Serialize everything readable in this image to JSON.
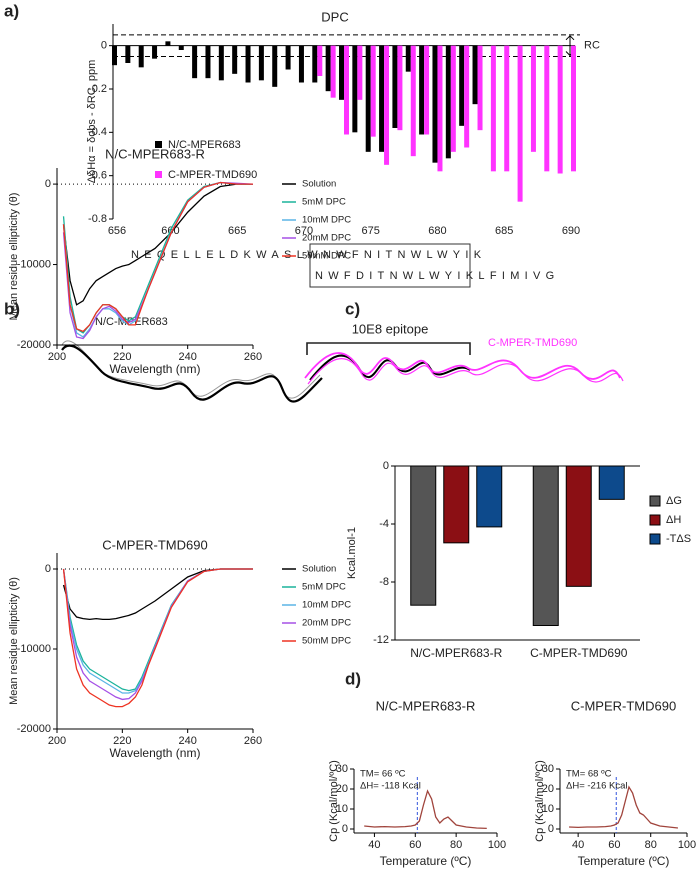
{
  "panel_labels": [
    "a)",
    "b)",
    "c)",
    "d)"
  ],
  "chart_data": [
    {
      "type": "bar",
      "title": "DPC",
      "y_label": "ΔδHα = δobs - δRC, ppm",
      "x": [
        656,
        657,
        658,
        659,
        660,
        661,
        662,
        663,
        664,
        665,
        666,
        667,
        668,
        669,
        670,
        671,
        672,
        673,
        674,
        675,
        676,
        677,
        678,
        679,
        680,
        681,
        682,
        683,
        684,
        685,
        686,
        687,
        688,
        689,
        690
      ],
      "series": [
        {
          "name": "N/C-MPER683",
          "color": "#000000",
          "values": [
            -0.09,
            -0.08,
            -0.1,
            -0.06,
            0.02,
            -0.02,
            -0.15,
            -0.15,
            -0.16,
            -0.13,
            -0.17,
            -0.16,
            -0.19,
            -0.11,
            -0.17,
            -0.17,
            -0.21,
            -0.25,
            -0.4,
            -0.49,
            -0.49,
            -0.38,
            -0.12,
            -0.41,
            -0.54,
            -0.52,
            -0.37,
            -0.27,
            null,
            null,
            null,
            null,
            null,
            null,
            null
          ]
        },
        {
          "name": "C-MPER-TMD690",
          "color": "#ff33ff",
          "values": [
            null,
            null,
            null,
            null,
            null,
            null,
            null,
            null,
            null,
            null,
            null,
            null,
            null,
            null,
            null,
            -0.14,
            -0.24,
            -0.41,
            -0.25,
            -0.42,
            -0.55,
            -0.39,
            -0.51,
            -0.41,
            -0.58,
            -0.49,
            -0.47,
            -0.39,
            -0.58,
            -0.58,
            -0.72,
            -0.49,
            -0.58,
            -0.59,
            -0.58
          ]
        }
      ],
      "xlim": [
        656,
        690
      ],
      "xticks": [
        656,
        660,
        665,
        670,
        675,
        680,
        685,
        690
      ],
      "ylim": [
        -0.8,
        0.1
      ],
      "yticks": [
        0,
        -0.2,
        -0.4,
        -0.6,
        -0.8
      ],
      "reference_lines": [
        0.05,
        -0.05
      ],
      "reference_label": "RC",
      "sequences": [
        "NEQELLELDKWASLWNWFNITNWLWYIK",
        "NWFDITNWLWYIKLFIMIVG"
      ],
      "epitope_label": "10E8 epitope",
      "structure_labels": [
        "N/C-MPER683",
        "C-MPER-TMD690"
      ]
    },
    {
      "type": "line",
      "title": "N/C-MPER683-R",
      "x_label": "Wavelength (nm)",
      "y_label": "Mean residue ellipticity (θ)",
      "x": [
        202,
        204,
        206,
        208,
        210,
        212,
        214,
        216,
        218,
        220,
        222,
        224,
        226,
        228,
        230,
        235,
        240,
        245,
        250,
        255,
        260
      ],
      "series": [
        {
          "name": "Solution",
          "color": "#000000",
          "values": [
            -5000,
            -12000,
            -15000,
            -14500,
            -13000,
            -12000,
            -11500,
            -11000,
            -10500,
            -10200,
            -10000,
            -9500,
            -9000,
            -8500,
            -8000,
            -6000,
            -3500,
            -1500,
            -300,
            0,
            0
          ]
        },
        {
          "name": "5mM DPC",
          "color": "#1bb39b",
          "values": [
            -4000,
            -14000,
            -18000,
            -18500,
            -17500,
            -16000,
            -15000,
            -15000,
            -15500,
            -16500,
            -17000,
            -16500,
            -14500,
            -12500,
            -10500,
            -5500,
            -2000,
            -300,
            200,
            0,
            0
          ]
        },
        {
          "name": "10mM DPC",
          "color": "#5ab4e5",
          "values": [
            -5000,
            -15000,
            -18500,
            -19000,
            -18000,
            -16500,
            -15500,
            -15500,
            -16000,
            -17000,
            -17500,
            -17000,
            -15000,
            -13000,
            -11000,
            -6000,
            -2200,
            -400,
            200,
            0,
            0
          ]
        },
        {
          "name": "20mM DPC",
          "color": "#a550e6",
          "values": [
            -6000,
            -16000,
            -19000,
            -19200,
            -18200,
            -16500,
            -15500,
            -15200,
            -15800,
            -16800,
            -17200,
            -16800,
            -15000,
            -13000,
            -11000,
            -6000,
            -2200,
            -400,
            200,
            100,
            0
          ]
        },
        {
          "name": "50mM DPC",
          "color": "#ee3322",
          "values": [
            -5000,
            -15000,
            -18000,
            -18300,
            -17500,
            -16000,
            -15000,
            -15000,
            -15500,
            -16500,
            -17500,
            -17500,
            -15200,
            -13000,
            -11000,
            -6000,
            -2200,
            -400,
            200,
            0,
            0
          ]
        }
      ],
      "xlim": [
        200,
        260
      ],
      "xticks": [
        200,
        220,
        240,
        260
      ],
      "ylim": [
        -20000,
        2000
      ],
      "yticks": [
        0,
        -10000,
        -20000
      ]
    },
    {
      "type": "line",
      "title": "C-MPER-TMD690",
      "x_label": "Wavelength (nm)",
      "y_label": "Mean residue ellipticity (θ)",
      "x": [
        202,
        204,
        206,
        208,
        210,
        212,
        214,
        216,
        218,
        220,
        222,
        224,
        226,
        228,
        230,
        235,
        240,
        245,
        250,
        255,
        260
      ],
      "series": [
        {
          "name": "Solution",
          "color": "#000000",
          "values": [
            -2000,
            -5000,
            -6000,
            -6200,
            -6300,
            -6200,
            -6300,
            -6300,
            -6200,
            -6000,
            -5800,
            -5500,
            -5000,
            -4500,
            -4000,
            -2500,
            -1000,
            -200,
            0,
            0,
            0
          ]
        },
        {
          "name": "5mM DPC",
          "color": "#1bb39b",
          "values": [
            0,
            -6000,
            -9500,
            -11500,
            -12500,
            -13000,
            -13500,
            -14000,
            -14500,
            -15000,
            -15200,
            -15000,
            -13500,
            -11500,
            -9500,
            -4500,
            -1500,
            -300,
            0,
            0,
            0
          ]
        },
        {
          "name": "10mM DPC",
          "color": "#5ab4e5",
          "values": [
            0,
            -6500,
            -10000,
            -12000,
            -13000,
            -13500,
            -14000,
            -14500,
            -15000,
            -15500,
            -15500,
            -15200,
            -13800,
            -11800,
            -9700,
            -4600,
            -1500,
            -300,
            0,
            0,
            0
          ]
        },
        {
          "name": "20mM DPC",
          "color": "#a550e6",
          "values": [
            0,
            -7000,
            -11000,
            -13000,
            -14000,
            -14500,
            -15000,
            -15500,
            -16000,
            -16300,
            -16200,
            -15500,
            -14000,
            -12000,
            -9800,
            -4700,
            -1500,
            -300,
            0,
            0,
            0
          ]
        },
        {
          "name": "50mM DPC",
          "color": "#ee3322",
          "values": [
            0,
            -8000,
            -12500,
            -14500,
            -15500,
            -16000,
            -16500,
            -17000,
            -17200,
            -17200,
            -16800,
            -16000,
            -14500,
            -12000,
            -10000,
            -4800,
            -1600,
            -300,
            0,
            0,
            0
          ]
        }
      ],
      "xlim": [
        200,
        260
      ],
      "xticks": [
        200,
        220,
        240,
        260
      ],
      "ylim": [
        -20000,
        2000
      ],
      "yticks": [
        0,
        -10000,
        -20000
      ]
    },
    {
      "type": "groupedbar",
      "y_label": "Kcal.mol-1",
      "categories": [
        "N/C-MPER683-R",
        "C-MPER-TMD690"
      ],
      "series": [
        {
          "name": "ΔG",
          "color": "#555555",
          "values": [
            -9.6,
            -11
          ]
        },
        {
          "name": "ΔH",
          "color": "#8b0f14",
          "values": [
            -5.3,
            -8.3
          ]
        },
        {
          "name": "-TΔS",
          "color": "#0d4a8c",
          "values": [
            -4.2,
            -2.3
          ]
        }
      ],
      "ylim": [
        -12,
        0
      ],
      "yticks": [
        0,
        -4,
        -8,
        -12
      ]
    },
    {
      "type": "line",
      "title": "N/C-MPER683-R",
      "x_label": "Temperature (ºC)",
      "y_label": "Cp (Kcal/mol/ºC)",
      "annotations": [
        "TM= 66 ºC",
        "ΔH=  -118 Kcal"
      ],
      "vline": 61,
      "x": [
        35,
        40,
        45,
        50,
        55,
        58,
        60,
        62,
        64,
        66,
        68,
        70,
        72,
        74,
        76,
        78,
        80,
        85,
        90,
        95
      ],
      "series": [
        {
          "color": "#a0443c",
          "values": [
            1.5,
            1,
            1.2,
            1,
            1.2,
            1.5,
            2,
            4,
            12,
            19,
            15,
            6,
            3,
            5,
            6,
            4,
            2,
            1,
            0.5,
            0.3
          ]
        }
      ],
      "xlim": [
        30,
        100
      ],
      "xticks": [
        40,
        60,
        80,
        100
      ],
      "ylim": [
        -2,
        30
      ],
      "yticks": [
        0,
        10,
        20,
        30
      ]
    },
    {
      "type": "line",
      "title": "C-MPER-TMD690",
      "x_label": "Temperature (ºC)",
      "y_label": "Cp (Kcal/mol/ºC)",
      "annotations": [
        "TM= 68 ºC",
        "ΔH=  -216 Kcal"
      ],
      "vline": 61,
      "x": [
        35,
        40,
        45,
        50,
        55,
        58,
        60,
        62,
        64,
        66,
        68,
        70,
        72,
        74,
        76,
        78,
        80,
        85,
        90,
        95
      ],
      "series": [
        {
          "color": "#a0443c",
          "values": [
            1,
            0.8,
            1,
            1,
            1.2,
            1.5,
            2,
            3,
            7,
            14,
            21,
            18,
            12,
            8,
            7,
            5,
            3,
            1.5,
            1,
            0.5
          ]
        }
      ],
      "xlim": [
        30,
        100
      ],
      "xticks": [
        40,
        60,
        80,
        100
      ],
      "ylim": [
        -2,
        30
      ],
      "yticks": [
        0,
        10,
        20,
        30
      ]
    }
  ]
}
